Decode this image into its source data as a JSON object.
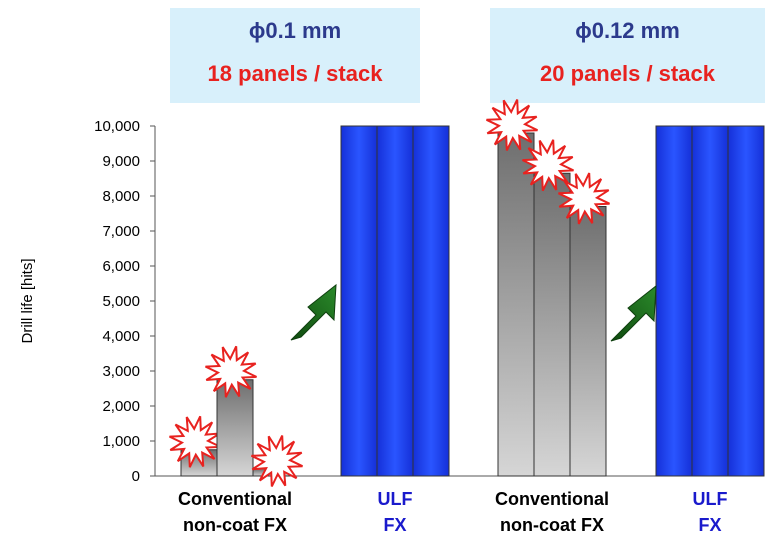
{
  "headers": [
    {
      "diameter": "0.1 mm",
      "phi": "ϕ",
      "panels": "18 panels / stack"
    },
    {
      "diameter": "0.12 mm",
      "phi": "ϕ",
      "panels": "20 panels / stack"
    }
  ],
  "chart_data": {
    "type": "bar",
    "ylabel": "Drill life  [hits]",
    "ylim": [
      0,
      10000
    ],
    "yticks": [
      "0",
      "1,000",
      "2,000",
      "3,000",
      "4,000",
      "5,000",
      "6,000",
      "7,000",
      "8,000",
      "9,000",
      "10,000"
    ],
    "groups": [
      {
        "name_line1": "Conventional",
        "name_line2": "non-coat FX",
        "style": "gray",
        "values": [
          750,
          2750,
          200
        ],
        "breaks": [
          true,
          true,
          true
        ]
      },
      {
        "name_line1": "ULF",
        "name_line2": "FX",
        "style": "blue",
        "values": [
          10000,
          10000,
          10000
        ],
        "breaks": [
          false,
          false,
          false
        ]
      },
      {
        "name_line1": "Conventional",
        "name_line2": "non-coat FX",
        "style": "gray",
        "values": [
          9800,
          8650,
          7700
        ],
        "breaks": [
          true,
          true,
          true
        ]
      },
      {
        "name_line1": "ULF",
        "name_line2": "FX",
        "style": "blue",
        "values": [
          10000,
          10000,
          10000
        ],
        "breaks": [
          false,
          false,
          false
        ]
      }
    ],
    "arrows": [
      {
        "from_group": 0,
        "to_group": 1
      },
      {
        "from_group": 2,
        "to_group": 3
      }
    ],
    "colors": {
      "blue": "#1e3cf0",
      "gray": "#8c8c8c",
      "burst": "#e8221f",
      "arrow": "#1f6b1f",
      "label_gray": "#000000",
      "label_blue": "#1a1acc"
    }
  }
}
